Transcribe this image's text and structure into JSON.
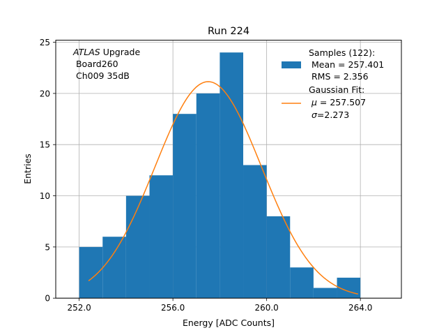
{
  "chart_data": {
    "type": "bar",
    "title": "Run 224",
    "xlabel": "Energy [ADC Counts]",
    "ylabel": "Entries",
    "xlim": [
      251,
      265.75
    ],
    "ylim": [
      0,
      25.2
    ],
    "grid": true,
    "x_ticks": [
      {
        "value": 252,
        "label": "252.0"
      },
      {
        "value": 256,
        "label": "256.0"
      },
      {
        "value": 260,
        "label": "260.0"
      },
      {
        "value": 264,
        "label": "264.0"
      }
    ],
    "y_ticks": [
      {
        "value": 0,
        "label": "0"
      },
      {
        "value": 5,
        "label": "5"
      },
      {
        "value": 10,
        "label": "10"
      },
      {
        "value": 15,
        "label": "15"
      },
      {
        "value": 20,
        "label": "20"
      },
      {
        "value": 25,
        "label": "25"
      }
    ],
    "bin_edges": [
      252,
      253,
      254,
      255,
      256,
      257,
      258,
      259,
      260,
      261,
      262,
      263,
      264
    ],
    "counts": [
      5,
      6,
      10,
      12,
      18,
      20,
      24,
      13,
      8,
      3,
      1,
      2
    ],
    "fit": {
      "mu": 257.507,
      "sigma": 2.273,
      "x_range": [
        252.4,
        263.9
      ],
      "peak": 21.15
    },
    "annotation": {
      "italic": "ATLAS",
      "title_rest": " Upgrade",
      "line2": " Board260",
      "line3": " Ch009 35dB"
    },
    "legend": {
      "position": "top-right",
      "hist_lines": [
        "Samples (122):",
        " Mean = 257.401",
        " RMS = 2.356"
      ],
      "fit_title": "Gaussian Fit:",
      "fit_mu_symbol": "μ",
      "fit_mu_value": " = 257.507",
      "fit_sigma_symbol": "σ",
      "fit_sigma_value": "=2.273"
    },
    "colors": {
      "bars": "#1f77b4",
      "fit": "#ff7f0e",
      "grid": "#b0b0b0"
    }
  }
}
